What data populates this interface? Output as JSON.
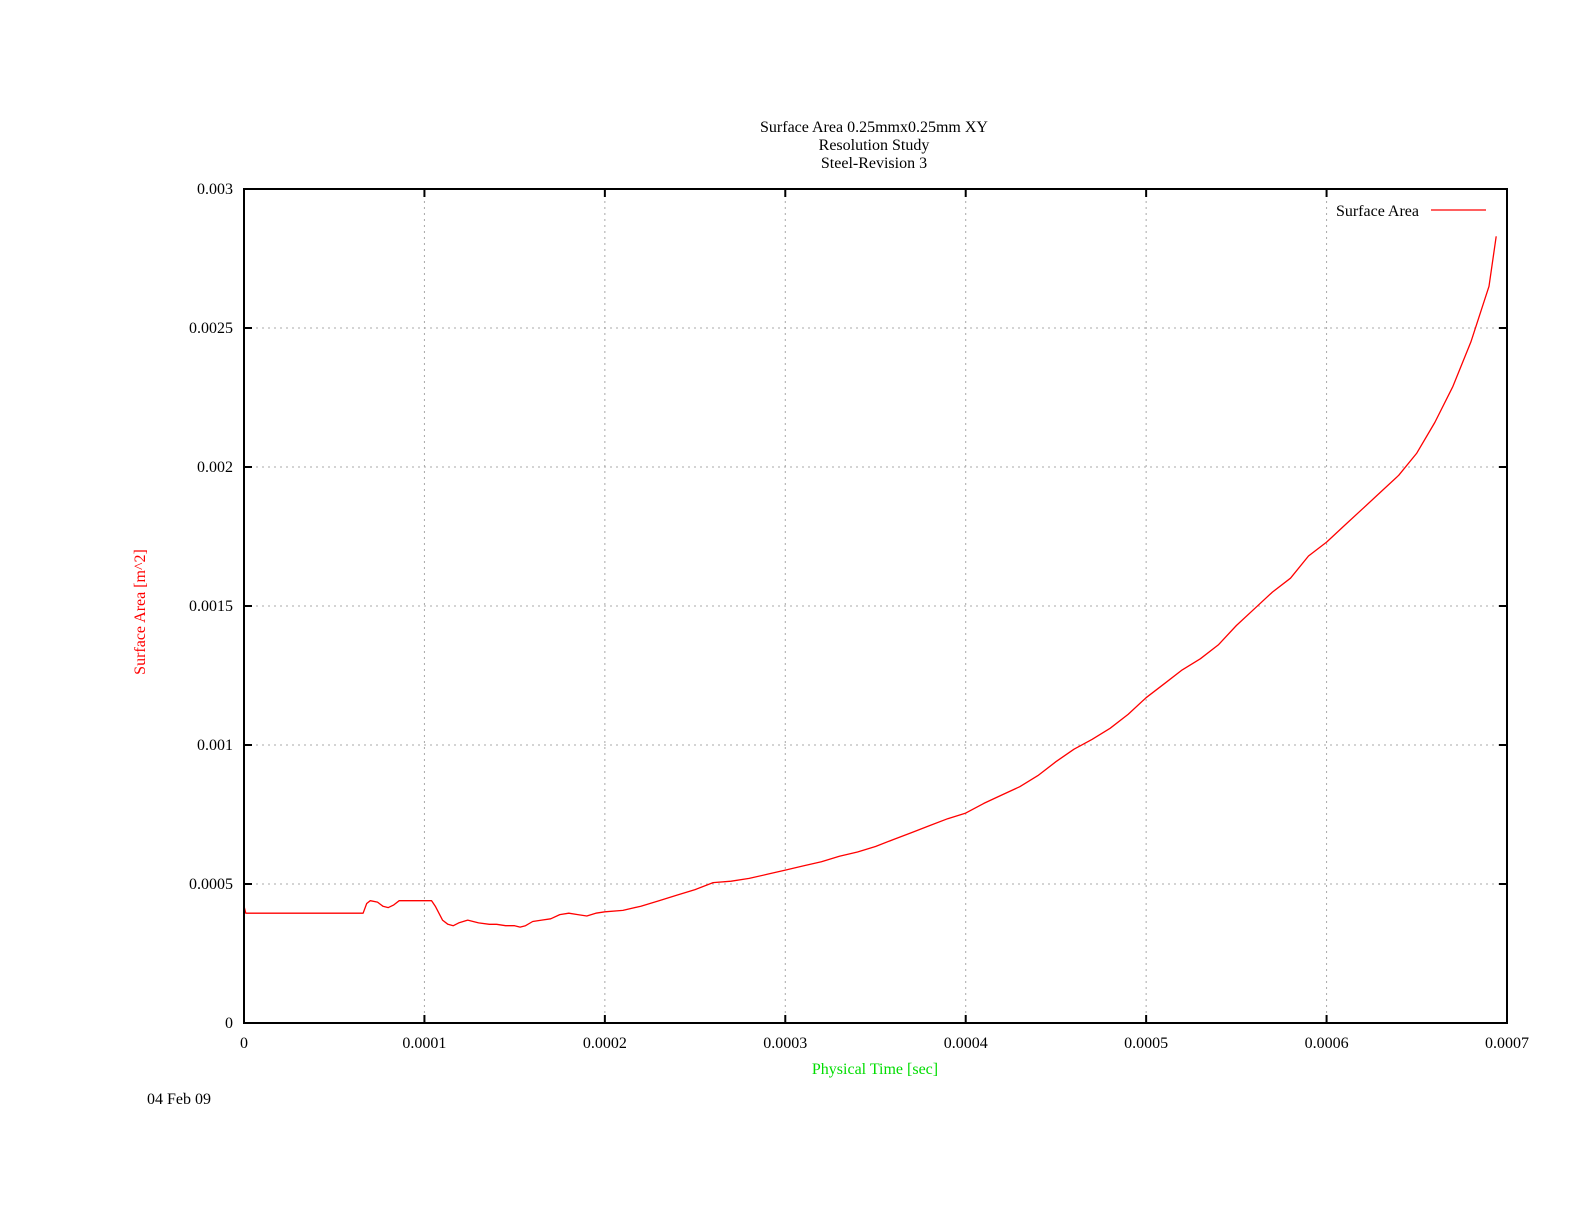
{
  "colors": {
    "series": "#ff0000",
    "xlabel": "#00dd00",
    "ylabel": "#ff0000",
    "text": "#000000",
    "grid": "#a8a8a8"
  },
  "chart_data": {
    "type": "line",
    "title_lines": [
      "Surface Area 0.25mmx0.25mm XY",
      "Resolution Study",
      "Steel-Revision 3"
    ],
    "xlabel": "Physical Time [sec]",
    "ylabel": "Surface Area [m^2]",
    "xlim": [
      0,
      0.0007
    ],
    "ylim": [
      0,
      0.003
    ],
    "xticks": [
      0,
      0.0001,
      0.0002,
      0.0003,
      0.0004,
      0.0005,
      0.0006,
      0.0007
    ],
    "xtick_labels": [
      "0",
      "0.0001",
      "0.0002",
      "0.0003",
      "0.0004",
      "0.0005",
      "0.0006",
      "0.0007"
    ],
    "yticks": [
      0,
      0.0005,
      0.001,
      0.0015,
      0.002,
      0.0025,
      0.003
    ],
    "ytick_labels": [
      "0",
      "0.0005",
      "0.001",
      "0.0015",
      "0.002",
      "0.0025",
      "0.003"
    ],
    "grid": true,
    "legend_position": "top-right",
    "series": [
      {
        "name": "Surface Area",
        "x": [
          0,
          1e-06,
          2e-06,
          6.6e-05,
          6.8e-05,
          7e-05,
          7.4e-05,
          7.7e-05,
          8e-05,
          8.3e-05,
          8.6e-05,
          9e-05,
          9.5e-05,
          0.0001,
          0.000104,
          0.000106,
          0.00011,
          0.000113,
          0.000116,
          0.000119,
          0.000124,
          0.00013,
          0.000136,
          0.00014,
          0.000145,
          0.00015,
          0.000153,
          0.000156,
          0.00016,
          0.000165,
          0.00017,
          0.000175,
          0.00018,
          0.000185,
          0.00019,
          0.000195,
          0.0002,
          0.00021,
          0.00022,
          0.00023,
          0.00024,
          0.00025,
          0.00026,
          0.00027,
          0.00028,
          0.00029,
          0.0003,
          0.00031,
          0.00032,
          0.00033,
          0.00034,
          0.00035,
          0.00036,
          0.00037,
          0.00038,
          0.00039,
          0.0004,
          0.00041,
          0.00042,
          0.00043,
          0.00044,
          0.00045,
          0.00046,
          0.00047,
          0.00048,
          0.00049,
          0.0005,
          0.00051,
          0.00052,
          0.00053,
          0.00054,
          0.00055,
          0.00056,
          0.00057,
          0.00058,
          0.00059,
          0.0006,
          0.00061,
          0.00062,
          0.00063,
          0.00064,
          0.00065,
          0.00066,
          0.00067,
          0.00068,
          0.00069,
          0.000694
        ],
        "y": [
          0.00042,
          0.000395,
          0.000395,
          0.000395,
          0.00043,
          0.00044,
          0.000435,
          0.00042,
          0.000415,
          0.000425,
          0.00044,
          0.00044,
          0.00044,
          0.00044,
          0.00044,
          0.00042,
          0.00037,
          0.000355,
          0.00035,
          0.00036,
          0.00037,
          0.00036,
          0.000355,
          0.000355,
          0.00035,
          0.00035,
          0.000345,
          0.00035,
          0.000365,
          0.00037,
          0.000375,
          0.00039,
          0.000395,
          0.00039,
          0.000385,
          0.000395,
          0.0004,
          0.000405,
          0.00042,
          0.00044,
          0.00046,
          0.00048,
          0.000505,
          0.00051,
          0.00052,
          0.000535,
          0.00055,
          0.000565,
          0.00058,
          0.0006,
          0.000615,
          0.000635,
          0.00066,
          0.000685,
          0.00071,
          0.000735,
          0.000755,
          0.00079,
          0.00082,
          0.00085,
          0.00089,
          0.00094,
          0.000985,
          0.00102,
          0.00106,
          0.00111,
          0.00117,
          0.00122,
          0.00127,
          0.00131,
          0.00136,
          0.00143,
          0.00149,
          0.00155,
          0.0016,
          0.00168,
          0.00173,
          0.00179,
          0.00185,
          0.00191,
          0.00197,
          0.00205,
          0.00216,
          0.00229,
          0.00245,
          0.00265,
          0.00283
        ]
      }
    ]
  },
  "footer": {
    "date": "04 Feb 09"
  }
}
